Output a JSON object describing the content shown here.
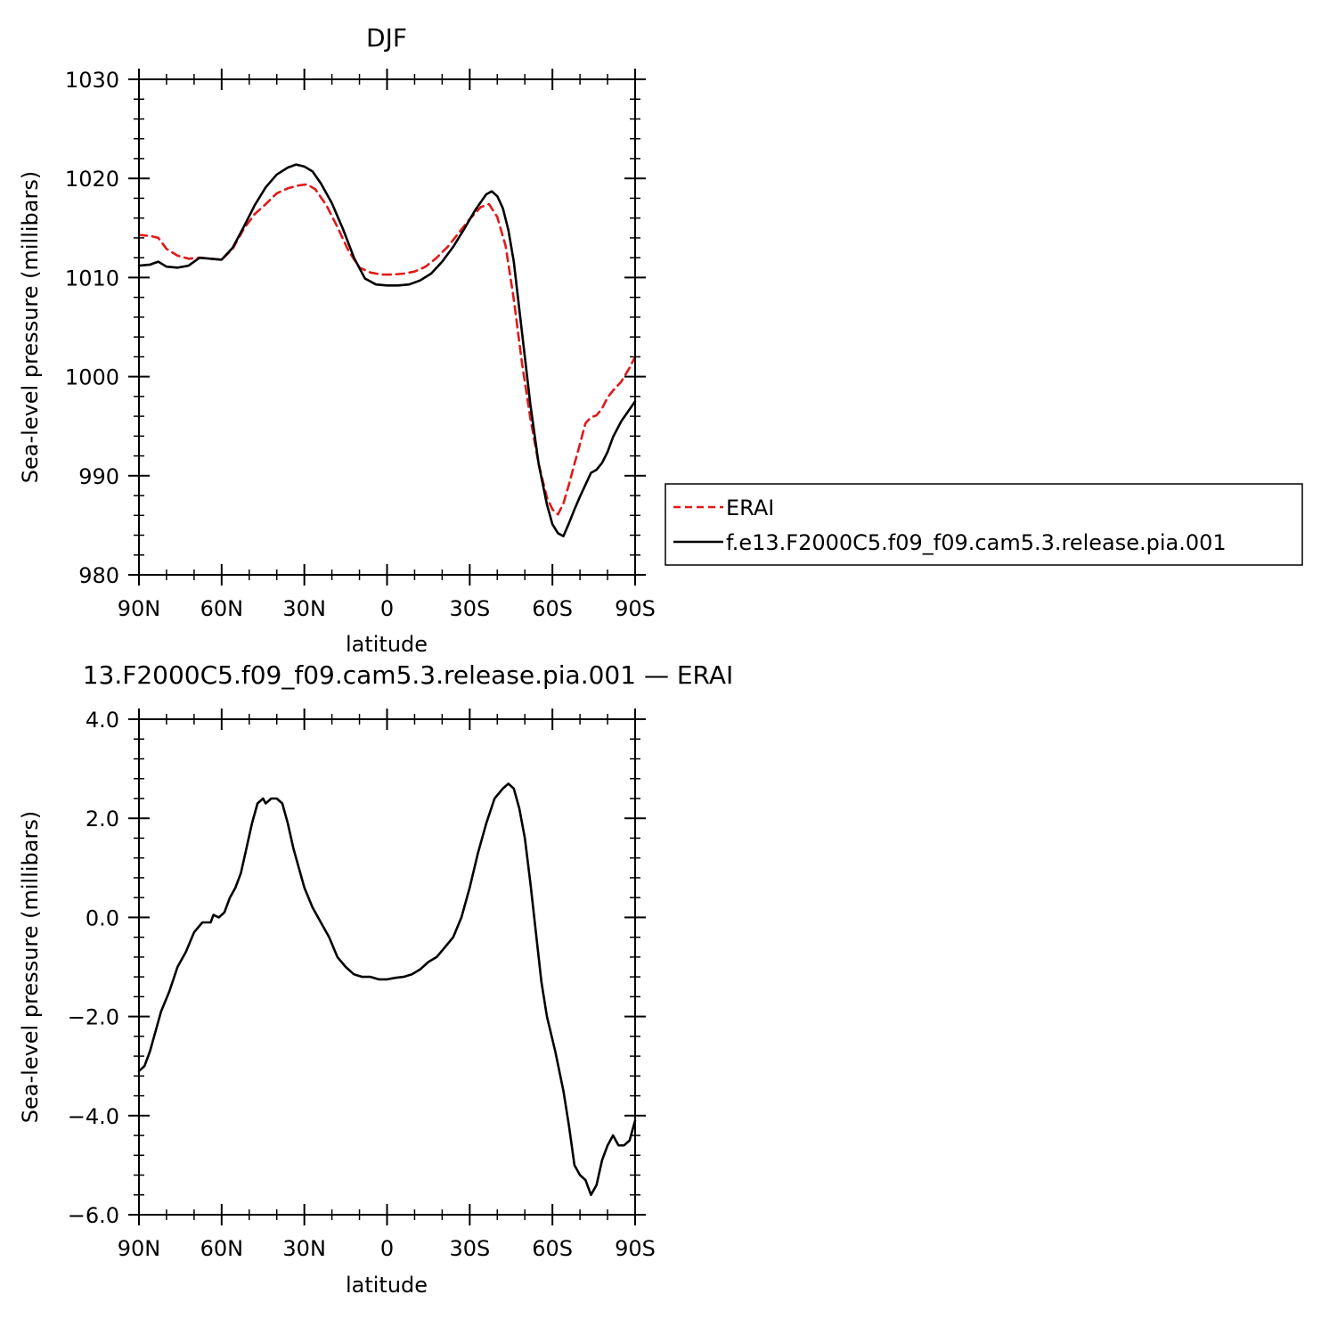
{
  "chart_data": [
    {
      "type": "line",
      "title": "DJF",
      "xlabel": "latitude",
      "ylabel": "Sea-level pressure (millibars)",
      "xlim": [
        -90,
        90
      ],
      "ylim": [
        980,
        1030
      ],
      "x_ticks": [
        {
          "value": -90,
          "label": "90N"
        },
        {
          "value": -60,
          "label": "60N"
        },
        {
          "value": -30,
          "label": "30N"
        },
        {
          "value": 0,
          "label": "0"
        },
        {
          "value": 30,
          "label": "30S"
        },
        {
          "value": 60,
          "label": "60S"
        },
        {
          "value": 90,
          "label": "90S"
        }
      ],
      "y_ticks": [
        {
          "value": 980,
          "label": "980"
        },
        {
          "value": 990,
          "label": "990"
        },
        {
          "value": 1000,
          "label": "1000"
        },
        {
          "value": 1010,
          "label": "1010"
        },
        {
          "value": 1020,
          "label": "1020"
        },
        {
          "value": 1030,
          "label": "1030"
        }
      ],
      "legend_position": "right",
      "series": [
        {
          "name": "ERAI",
          "color": "#e0191a",
          "dash": "dashed",
          "points": [
            [
              -90,
              1014.3
            ],
            [
              -86,
              1014.2
            ],
            [
              -83,
              1014.0
            ],
            [
              -80,
              1012.9
            ],
            [
              -76,
              1012.2
            ],
            [
              -72,
              1011.9
            ],
            [
              -68,
              1012.0
            ],
            [
              -64,
              1011.9
            ],
            [
              -60,
              1011.8
            ],
            [
              -56,
              1012.9
            ],
            [
              -52,
              1014.9
            ],
            [
              -48,
              1016.4
            ],
            [
              -44,
              1017.4
            ],
            [
              -40,
              1018.5
            ],
            [
              -36,
              1019.0
            ],
            [
              -32,
              1019.3
            ],
            [
              -29,
              1019.4
            ],
            [
              -26,
              1018.9
            ],
            [
              -22,
              1017.3
            ],
            [
              -18,
              1015.1
            ],
            [
              -14,
              1012.7
            ],
            [
              -10,
              1011.0
            ],
            [
              -6,
              1010.5
            ],
            [
              -2,
              1010.3
            ],
            [
              2,
              1010.3
            ],
            [
              6,
              1010.4
            ],
            [
              10,
              1010.6
            ],
            [
              14,
              1011.1
            ],
            [
              18,
              1012.0
            ],
            [
              22,
              1013.1
            ],
            [
              26,
              1014.5
            ],
            [
              30,
              1015.9
            ],
            [
              34,
              1017.1
            ],
            [
              37,
              1017.4
            ],
            [
              40,
              1016.1
            ],
            [
              43,
              1013.2
            ],
            [
              46,
              1007.8
            ],
            [
              49,
              1001.3
            ],
            [
              52,
              995.8
            ],
            [
              55,
              991.2
            ],
            [
              58,
              987.8
            ],
            [
              60,
              986.6
            ],
            [
              62,
              986.1
            ],
            [
              64,
              987.2
            ],
            [
              66,
              989.1
            ],
            [
              68,
              991.2
            ],
            [
              70,
              993.2
            ],
            [
              72,
              995.3
            ],
            [
              74,
              995.9
            ],
            [
              76,
              996.1
            ],
            [
              78,
              996.8
            ],
            [
              80,
              997.9
            ],
            [
              82,
              998.6
            ],
            [
              85,
              999.5
            ],
            [
              88,
              1000.9
            ],
            [
              90,
              1002.0
            ]
          ]
        },
        {
          "name": "f.e13.F2000C5.f09_f09.cam5.3.release.pia.001",
          "color": "#000000",
          "dash": "solid",
          "points": [
            [
              -90,
              1011.2
            ],
            [
              -86,
              1011.3
            ],
            [
              -83,
              1011.6
            ],
            [
              -80,
              1011.1
            ],
            [
              -76,
              1011.0
            ],
            [
              -72,
              1011.2
            ],
            [
              -68,
              1012.0
            ],
            [
              -64,
              1011.9
            ],
            [
              -60,
              1011.8
            ],
            [
              -56,
              1013.0
            ],
            [
              -52,
              1015.1
            ],
            [
              -48,
              1017.3
            ],
            [
              -44,
              1019.1
            ],
            [
              -40,
              1020.4
            ],
            [
              -36,
              1021.1
            ],
            [
              -33,
              1021.4
            ],
            [
              -30,
              1021.2
            ],
            [
              -27,
              1020.7
            ],
            [
              -24,
              1019.5
            ],
            [
              -20,
              1017.5
            ],
            [
              -16,
              1014.9
            ],
            [
              -12,
              1012.0
            ],
            [
              -8,
              1009.9
            ],
            [
              -4,
              1009.3
            ],
            [
              0,
              1009.2
            ],
            [
              4,
              1009.2
            ],
            [
              8,
              1009.3
            ],
            [
              12,
              1009.7
            ],
            [
              16,
              1010.4
            ],
            [
              20,
              1011.6
            ],
            [
              24,
              1013.1
            ],
            [
              28,
              1014.9
            ],
            [
              32,
              1016.8
            ],
            [
              36,
              1018.4
            ],
            [
              38,
              1018.7
            ],
            [
              40,
              1018.2
            ],
            [
              42,
              1017.0
            ],
            [
              44,
              1014.8
            ],
            [
              46,
              1011.6
            ],
            [
              49,
              1004.4
            ],
            [
              52,
              997.2
            ],
            [
              55,
              991.2
            ],
            [
              58,
              987.1
            ],
            [
              60,
              985.1
            ],
            [
              62,
              984.2
            ],
            [
              64,
              983.9
            ],
            [
              66,
              985.2
            ],
            [
              68,
              986.6
            ],
            [
              70,
              987.9
            ],
            [
              72,
              989.1
            ],
            [
              74,
              990.3
            ],
            [
              76,
              990.6
            ],
            [
              78,
              991.3
            ],
            [
              80,
              992.4
            ],
            [
              82,
              993.9
            ],
            [
              85,
              995.5
            ],
            [
              88,
              996.7
            ],
            [
              90,
              997.5
            ]
          ]
        }
      ]
    },
    {
      "type": "line",
      "title": "13.F2000C5.f09_f09.cam5.3.release.pia.001 — ERAI",
      "xlabel": "latitude",
      "ylabel": "Sea-level pressure (millibars)",
      "xlim": [
        -90,
        90
      ],
      "ylim": [
        -6.0,
        4.0
      ],
      "x_ticks": [
        {
          "value": -90,
          "label": "90N"
        },
        {
          "value": -60,
          "label": "60N"
        },
        {
          "value": -30,
          "label": "30N"
        },
        {
          "value": 0,
          "label": "0"
        },
        {
          "value": 30,
          "label": "30S"
        },
        {
          "value": 60,
          "label": "60S"
        },
        {
          "value": 90,
          "label": "90S"
        }
      ],
      "y_ticks": [
        {
          "value": -6.0,
          "label": "−6.0"
        },
        {
          "value": -4.0,
          "label": "−4.0"
        },
        {
          "value": -2.0,
          "label": "−2.0"
        },
        {
          "value": 0.0,
          "label": "0.0"
        },
        {
          "value": 2.0,
          "label": "2.0"
        },
        {
          "value": 4.0,
          "label": "4.0"
        }
      ],
      "series": [
        {
          "color": "#000000",
          "dash": "solid",
          "points": [
            [
              -90,
              -3.1
            ],
            [
              -88,
              -3.0
            ],
            [
              -86,
              -2.7
            ],
            [
              -84,
              -2.3
            ],
            [
              -82,
              -1.9
            ],
            [
              -79,
              -1.5
            ],
            [
              -76,
              -1.0
            ],
            [
              -73,
              -0.7
            ],
            [
              -70,
              -0.3
            ],
            [
              -67,
              -0.1
            ],
            [
              -64,
              -0.1
            ],
            [
              -63,
              0.05
            ],
            [
              -61,
              0.0
            ],
            [
              -59,
              0.1
            ],
            [
              -57,
              0.4
            ],
            [
              -55,
              0.6
            ],
            [
              -53,
              0.9
            ],
            [
              -51,
              1.4
            ],
            [
              -49,
              1.9
            ],
            [
              -47,
              2.3
            ],
            [
              -45,
              2.4
            ],
            [
              -44,
              2.3
            ],
            [
              -42,
              2.4
            ],
            [
              -40,
              2.4
            ],
            [
              -38,
              2.3
            ],
            [
              -36,
              1.9
            ],
            [
              -34,
              1.4
            ],
            [
              -32,
              1.0
            ],
            [
              -30,
              0.6
            ],
            [
              -27,
              0.2
            ],
            [
              -24,
              -0.1
            ],
            [
              -21,
              -0.4
            ],
            [
              -18,
              -0.8
            ],
            [
              -15,
              -1.0
            ],
            [
              -12,
              -1.15
            ],
            [
              -9,
              -1.2
            ],
            [
              -6,
              -1.2
            ],
            [
              -3,
              -1.25
            ],
            [
              0,
              -1.25
            ],
            [
              3,
              -1.22
            ],
            [
              6,
              -1.2
            ],
            [
              9,
              -1.15
            ],
            [
              12,
              -1.05
            ],
            [
              15,
              -0.9
            ],
            [
              18,
              -0.8
            ],
            [
              21,
              -0.6
            ],
            [
              24,
              -0.4
            ],
            [
              27,
              0.0
            ],
            [
              30,
              0.6
            ],
            [
              33,
              1.3
            ],
            [
              36,
              1.9
            ],
            [
              39,
              2.4
            ],
            [
              42,
              2.6
            ],
            [
              44,
              2.7
            ],
            [
              46,
              2.6
            ],
            [
              48,
              2.2
            ],
            [
              50,
              1.6
            ],
            [
              52,
              0.7
            ],
            [
              54,
              -0.3
            ],
            [
              56,
              -1.3
            ],
            [
              58,
              -2.0
            ],
            [
              61,
              -2.7
            ],
            [
              64,
              -3.5
            ],
            [
              66,
              -4.2
            ],
            [
              68,
              -5.0
            ],
            [
              70,
              -5.2
            ],
            [
              72,
              -5.3
            ],
            [
              74,
              -5.6
            ],
            [
              76,
              -5.4
            ],
            [
              78,
              -4.9
            ],
            [
              80,
              -4.6
            ],
            [
              82,
              -4.4
            ],
            [
              84,
              -4.6
            ],
            [
              86,
              -4.6
            ],
            [
              88,
              -4.5
            ],
            [
              90,
              -4.1
            ]
          ]
        }
      ]
    }
  ]
}
